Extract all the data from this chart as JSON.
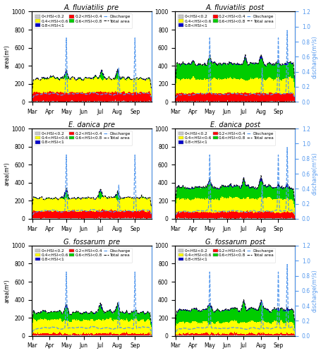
{
  "titles": [
    "A. fluviatilis_pre",
    "A. fluviatilis_post",
    "E. danica_pre",
    "E. danica_post",
    "G. fossarum_pre",
    "G. fossarum_post"
  ],
  "ylabel_left": "area(m²)",
  "ylabel_right": "discharge(m³/s)",
  "colors": {
    "hsi_0_2": "#c8c8c8",
    "hsi_2_4": "#ff0000",
    "hsi_4_6": "#ffff00",
    "hsi_6_8": "#00cc00",
    "hsi_8_1": "#0000cc",
    "discharge": "#5599ee",
    "total_area": "#000000"
  },
  "ylim_area": [
    0,
    1000
  ],
  "ylim_discharge": [
    0,
    1.2
  ],
  "yticks_area": [
    0,
    200,
    400,
    600,
    800,
    1000
  ],
  "yticks_discharge": [
    0.0,
    0.2,
    0.4,
    0.6,
    0.8,
    1.0,
    1.2
  ],
  "month_positions": [
    0,
    31,
    61,
    92,
    122,
    153,
    184
  ],
  "month_labels": [
    "Mar",
    "Apr",
    "May",
    "Jun",
    "Jul",
    "Aug",
    "Sep"
  ],
  "n_days": 214,
  "spike_days_pre": [
    61,
    155,
    184
  ],
  "spike_vals_pre": [
    0.85,
    0.45,
    0.85
  ],
  "spike_days_post": [
    61,
    155,
    184,
    200
  ],
  "spike_vals_post": [
    0.85,
    0.45,
    0.85,
    0.95
  ],
  "discharge_base": 0.08
}
